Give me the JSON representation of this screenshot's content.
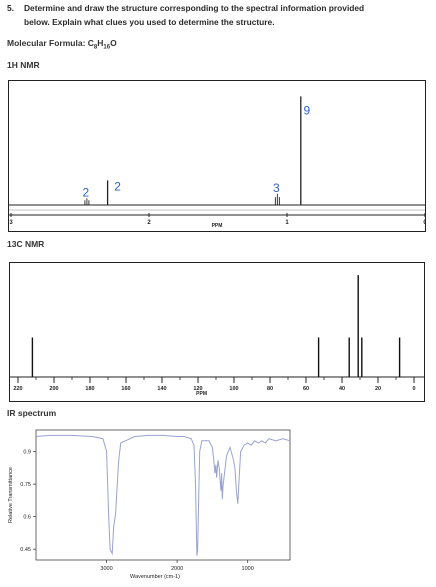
{
  "question": {
    "number": "5.",
    "line1": "Determine and draw the structure corresponding to the spectral information provided",
    "line2": "below. Explain what clues you used to determine the structure."
  },
  "formula": {
    "prefix": "Molecular Formula: C",
    "c_sub": "8",
    "h": "H",
    "h_sub": "16",
    "o": "O"
  },
  "h_nmr": {
    "title": "1H NMR",
    "axis_label": "PPM",
    "ticks": [
      "3",
      "2",
      "1",
      "0"
    ],
    "integrations": [
      "2",
      "2",
      "3",
      "9"
    ],
    "integration_color": "#2e62c8"
  },
  "c_nmr": {
    "title": "13C NMR",
    "axis_label": "PPM",
    "ticks": [
      "220",
      "200",
      "180",
      "160",
      "140",
      "120",
      "100",
      "80",
      "60",
      "40",
      "20",
      "0"
    ]
  },
  "ir": {
    "title": "IR spectrum",
    "xlabel": "Wavenumber (cm-1)",
    "ylabel": "Relative Transmittance",
    "x_ticks": [
      "3000",
      "2000",
      "1000"
    ],
    "y_ticks": [
      "0.9",
      "0.75",
      "0.6",
      "0.45"
    ],
    "trace_color": "#9aa3cf"
  },
  "chart_data": [
    {
      "type": "bar",
      "title": "1H NMR",
      "xlabel": "PPM",
      "xlim": [
        3,
        0
      ],
      "peaks": [
        {
          "ppm": 2.45,
          "height": 0.06,
          "integration": "2"
        },
        {
          "ppm": 2.3,
          "height": 0.22,
          "integration": "2"
        },
        {
          "ppm": 1.07,
          "height": 0.1,
          "integration": "3"
        },
        {
          "ppm": 0.9,
          "height": 0.97,
          "integration": "9"
        }
      ]
    },
    {
      "type": "bar",
      "title": "13C NMR",
      "xlabel": "PPM",
      "xlim": [
        220,
        0
      ],
      "peaks": [
        {
          "ppm": 212,
          "height": 0.38
        },
        {
          "ppm": 53,
          "height": 0.38
        },
        {
          "ppm": 36,
          "height": 0.38
        },
        {
          "ppm": 31,
          "height": 0.98
        },
        {
          "ppm": 29,
          "height": 0.38
        },
        {
          "ppm": 8,
          "height": 0.38
        }
      ]
    },
    {
      "type": "line",
      "title": "IR spectrum",
      "xlabel": "Wavenumber (cm-1)",
      "ylabel": "Relative Transmittance",
      "xlim": [
        4000,
        400
      ],
      "ylim": [
        0.4,
        1.0
      ],
      "x": [
        4000,
        3800,
        3500,
        3200,
        3050,
        3000,
        2970,
        2950,
        2920,
        2900,
        2870,
        2830,
        2800,
        2600,
        2400,
        2200,
        2000,
        1900,
        1800,
        1760,
        1740,
        1720,
        1710,
        1700,
        1680,
        1650,
        1550,
        1500,
        1480,
        1465,
        1450,
        1440,
        1420,
        1400,
        1390,
        1380,
        1370,
        1360,
        1350,
        1300,
        1250,
        1200,
        1180,
        1160,
        1140,
        1100,
        1050,
        1000,
        950,
        900,
        850,
        800,
        750,
        700,
        600,
        500,
        400
      ],
      "y": [
        0.97,
        0.975,
        0.975,
        0.97,
        0.96,
        0.9,
        0.6,
        0.45,
        0.43,
        0.55,
        0.62,
        0.85,
        0.94,
        0.97,
        0.975,
        0.975,
        0.97,
        0.97,
        0.96,
        0.93,
        0.75,
        0.42,
        0.44,
        0.6,
        0.9,
        0.95,
        0.95,
        0.92,
        0.86,
        0.8,
        0.84,
        0.78,
        0.86,
        0.82,
        0.76,
        0.72,
        0.8,
        0.68,
        0.74,
        0.88,
        0.92,
        0.86,
        0.82,
        0.72,
        0.66,
        0.9,
        0.93,
        0.94,
        0.93,
        0.95,
        0.94,
        0.95,
        0.94,
        0.96,
        0.95,
        0.96,
        0.95
      ]
    }
  ]
}
